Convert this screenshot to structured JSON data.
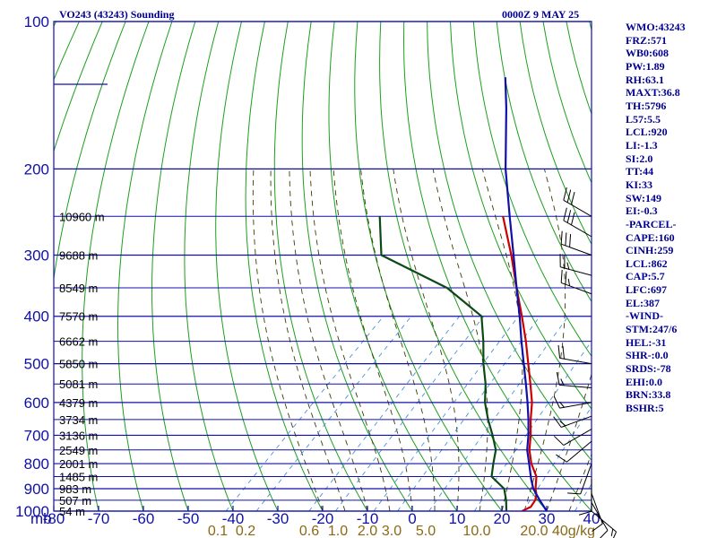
{
  "header": {
    "station": "VO243 (43243) Sounding",
    "time": "0000Z  9 MAY 25"
  },
  "indices": [
    "WMO:43243",
    "FRZ:571",
    "WB0:608",
    "PW:1.89",
    "RH:63.1",
    "MAXT:36.8",
    "TH:5796",
    "L57:5.5",
    "LCL:920",
    "LI:-1.3",
    "SI:2.0",
    "TT:44",
    "KI:33",
    "SW:149",
    "EI:-0.3",
    "-PARCEL-",
    "CAPE:160",
    "CINH:259",
    "LCL:862",
    "CAP:5.7",
    "LFC:697",
    "EL:387",
    "-WIND-",
    "STM:247/6",
    "HEL:-31",
    "SHR-:0.0",
    "SRDS:-78",
    "EHI:0.0",
    "BRN:33.8",
    "BSHR:5"
  ],
  "colors": {
    "frame": "#1010a8",
    "isobar": "#1010a8",
    "dry_adiabat": "#1e9e1e",
    "moist_adiabat": "#3c3c00",
    "mixing_ratio": "#4a90e0",
    "temperature": "#cc0000",
    "dewpoint": "#0b4a14",
    "parcel": "#1010a8"
  },
  "chart_data": {
    "type": "line",
    "xlabel": "",
    "ylabel": "mb",
    "pressure_ticks": [
      100,
      200,
      300,
      400,
      500,
      600,
      700,
      800,
      900,
      1000
    ],
    "temperature_ticks": [
      -80,
      -70,
      -60,
      -50,
      -40,
      -30,
      -20,
      -10,
      0,
      10,
      20,
      30,
      40
    ],
    "xlim": [
      -80,
      40
    ],
    "ylim": [
      1000,
      100
    ],
    "height_labels": [
      {
        "p": 250,
        "label": "10960 m"
      },
      {
        "p": 300,
        "label": "9688 m"
      },
      {
        "p": 350,
        "label": "8549 m"
      },
      {
        "p": 400,
        "label": "7570 m"
      },
      {
        "p": 450,
        "label": "6662 m"
      },
      {
        "p": 500,
        "label": "5850 m"
      },
      {
        "p": 550,
        "label": "5081 m"
      },
      {
        "p": 600,
        "label": "4379 m"
      },
      {
        "p": 650,
        "label": "3734 m"
      },
      {
        "p": 700,
        "label": "3136 m"
      },
      {
        "p": 750,
        "label": "2549 m"
      },
      {
        "p": 800,
        "label": "2001 m"
      },
      {
        "p": 850,
        "label": "1485 m"
      },
      {
        "p": 900,
        "label": "983 m"
      },
      {
        "p": 950,
        "label": "507 m"
      },
      {
        "p": 1000,
        "label": "54 m"
      }
    ],
    "mixing_ratio_labels": [
      {
        "w": 0.1,
        "label": "0.1"
      },
      {
        "w": 0.2,
        "label": "0.2"
      },
      {
        "w": 0.6,
        "label": "0.6"
      },
      {
        "w": 1.0,
        "label": "1.0"
      },
      {
        "w": 2.0,
        "label": "2.0"
      },
      {
        "w": 3.0,
        "label": "3.0"
      },
      {
        "w": 5.0,
        "label": "5.0"
      },
      {
        "w": 10.0,
        "label": "10.0"
      },
      {
        "w": 20.0,
        "label": "20.0"
      },
      {
        "w": 40.0,
        "label": "40g/kg"
      }
    ],
    "series": [
      {
        "points": [
          {
            "p": 1000,
            "t": 24.5
          },
          {
            "p": 980,
            "t": 25.5
          },
          {
            "p": 950,
            "t": 25.0
          },
          {
            "p": 925,
            "t": 24.0
          },
          {
            "p": 900,
            "t": 22.5
          },
          {
            "p": 850,
            "t": 20.0
          },
          {
            "p": 800,
            "t": 16.0
          },
          {
            "p": 750,
            "t": 12.5
          },
          {
            "p": 700,
            "t": 9.5
          },
          {
            "p": 650,
            "t": 6.0
          },
          {
            "p": 600,
            "t": 2.5
          },
          {
            "p": 550,
            "t": -2.0
          },
          {
            "p": 500,
            "t": -7.0
          },
          {
            "p": 450,
            "t": -12.5
          },
          {
            "p": 400,
            "t": -19.0
          },
          {
            "p": 350,
            "t": -26.5
          },
          {
            "p": 300,
            "t": -35.0
          },
          {
            "p": 250,
            "t": -45.5
          }
        ]
      },
      {
        "points": [
          {
            "p": 1000,
            "t": 21.0
          },
          {
            "p": 950,
            "t": 18.5
          },
          {
            "p": 900,
            "t": 15.5
          },
          {
            "p": 850,
            "t": 10.0
          },
          {
            "p": 800,
            "t": 7.5
          },
          {
            "p": 750,
            "t": 5.0
          },
          {
            "p": 700,
            "t": 1.0
          },
          {
            "p": 650,
            "t": -3.5
          },
          {
            "p": 600,
            "t": -8.0
          },
          {
            "p": 550,
            "t": -12.0
          },
          {
            "p": 500,
            "t": -17.0
          },
          {
            "p": 450,
            "t": -22.0
          },
          {
            "p": 400,
            "t": -28.0
          },
          {
            "p": 350,
            "t": -42.0
          },
          {
            "p": 300,
            "t": -64.0
          },
          {
            "p": 250,
            "t": -73.0
          }
        ]
      },
      {
        "points": [
          {
            "p": 1000,
            "t": 30.0
          },
          {
            "p": 950,
            "t": 26.0
          },
          {
            "p": 900,
            "t": 22.0
          },
          {
            "p": 862,
            "t": 19.5
          },
          {
            "p": 800,
            "t": 15.5
          },
          {
            "p": 750,
            "t": 12.0
          },
          {
            "p": 700,
            "t": 9.0
          },
          {
            "p": 650,
            "t": 5.5
          },
          {
            "p": 600,
            "t": 1.5
          },
          {
            "p": 550,
            "t": -3.0
          },
          {
            "p": 500,
            "t": -8.0
          },
          {
            "p": 450,
            "t": -13.5
          },
          {
            "p": 400,
            "t": -19.5
          },
          {
            "p": 350,
            "t": -26.5
          },
          {
            "p": 300,
            "t": -34.5
          },
          {
            "p": 250,
            "t": -44.0
          },
          {
            "p": 200,
            "t": -55.5
          },
          {
            "p": 150,
            "t": -69.0
          },
          {
            "p": 130,
            "t": -76.0
          }
        ]
      }
    ],
    "wind_barbs": [
      {
        "p": 250,
        "dir": 300,
        "kt": 30
      },
      {
        "p": 275,
        "dir": 300,
        "kt": 30
      },
      {
        "p": 300,
        "dir": 290,
        "kt": 30
      },
      {
        "p": 330,
        "dir": 285,
        "kt": 25
      },
      {
        "p": 360,
        "dir": 290,
        "kt": 25
      },
      {
        "p": 500,
        "dir": 280,
        "kt": 20
      },
      {
        "p": 560,
        "dir": 275,
        "kt": 15
      },
      {
        "p": 600,
        "dir": 260,
        "kt": 15
      },
      {
        "p": 640,
        "dir": 250,
        "kt": 15
      },
      {
        "p": 680,
        "dir": 240,
        "kt": 10
      },
      {
        "p": 720,
        "dir": 230,
        "kt": 10
      },
      {
        "p": 800,
        "dir": 200,
        "kt": 10
      },
      {
        "p": 860,
        "dir": 180,
        "kt": 10
      },
      {
        "p": 920,
        "dir": 160,
        "kt": 10
      },
      {
        "p": 960,
        "dir": 150,
        "kt": 10
      },
      {
        "p": 1000,
        "dir": 130,
        "kt": 15
      }
    ]
  }
}
